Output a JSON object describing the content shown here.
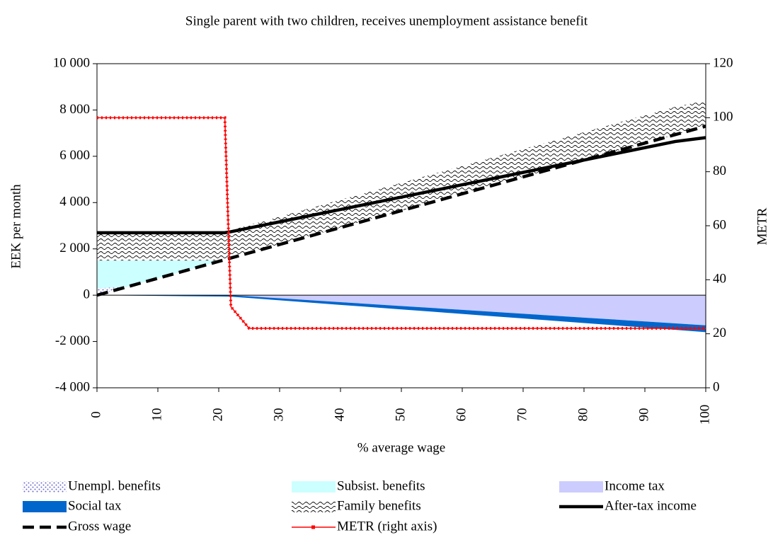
{
  "chart_data": {
    "type": "area",
    "title": "Single parent with two children, receives unemployment assistance benefit",
    "x_label": "% average wage",
    "y_label": "EEK per month",
    "y2_label": "METR",
    "stacked": true,
    "x": [
      0,
      5,
      10,
      15,
      20,
      21,
      22,
      25,
      30,
      35,
      40,
      45,
      50,
      55,
      60,
      65,
      70,
      75,
      80,
      85,
      90,
      95,
      100
    ],
    "xlim": [
      0,
      100
    ],
    "xticks": [
      0,
      10,
      20,
      30,
      40,
      50,
      60,
      70,
      80,
      90,
      100
    ],
    "ylim": [
      -4000,
      10000
    ],
    "yticks": [
      {
        "value": -4000,
        "label": "-4 000"
      },
      {
        "value": -2000,
        "label": "-2 000"
      },
      0,
      {
        "value": 2000,
        "label": "2 000"
      },
      {
        "value": 4000,
        "label": "4 000"
      },
      {
        "value": 6000,
        "label": "6 000"
      },
      {
        "value": 8000,
        "label": "8 000"
      },
      {
        "value": 10000,
        "label": "10 000"
      }
    ],
    "y2lim": [
      0,
      120
    ],
    "y2ticks": [
      0,
      20,
      40,
      60,
      80,
      100,
      120
    ],
    "series": [
      {
        "name": "Unempl. benefits",
        "type": "area",
        "pattern": "dots",
        "color": "#6a6ad0",
        "values": [
          300,
          0,
          0,
          0,
          0,
          0,
          0,
          0,
          0,
          0,
          0,
          0,
          0,
          0,
          0,
          0,
          0,
          0,
          0,
          0,
          0,
          0,
          0
        ]
      },
      {
        "name": "Subsist. benefits",
        "type": "area",
        "color": "#ccffff",
        "values": [
          1200,
          1135,
          770,
          405,
          40,
          0,
          0,
          0,
          0,
          0,
          0,
          0,
          0,
          0,
          0,
          0,
          0,
          0,
          0,
          0,
          0,
          0,
          0
        ]
      },
      {
        "name": "Income tax",
        "type": "area",
        "color": "#ccccff",
        "values": [
          0,
          0,
          0,
          0,
          0,
          0,
          0,
          -50,
          -134,
          -217,
          -301,
          -384,
          -468,
          -551,
          -635,
          -718,
          -802,
          -885,
          -969,
          -1052,
          -1136,
          -1219,
          -1303
        ]
      },
      {
        "name": "Social tax",
        "type": "area",
        "color": "#0066cc",
        "values": [
          0,
          -15,
          -29,
          -44,
          -58,
          -61,
          -64,
          -73,
          -88,
          -102,
          -117,
          -131,
          -146,
          -161,
          -175,
          -190,
          -204,
          -219,
          -234,
          -248,
          -263,
          -277,
          -292
        ]
      },
      {
        "name": "Family benefits",
        "type": "area",
        "pattern": "waves",
        "color": "#000000",
        "values": [
          1200,
          1200,
          1200,
          1200,
          1200,
          1200,
          1200,
          1200,
          1200,
          1200,
          1200,
          1200,
          1200,
          1200,
          1200,
          1200,
          1200,
          1200,
          1200,
          1200,
          1200,
          1200,
          1100
        ]
      },
      {
        "name": "After-tax income",
        "type": "line",
        "color": "#000000",
        "values": [
          2700,
          2700,
          2700,
          2700,
          2700,
          2700,
          2742,
          2902,
          3168,
          3436,
          3702,
          3970,
          4236,
          4503,
          4770,
          5037,
          5304,
          5571,
          5837,
          6105,
          6371,
          6639,
          6805
        ]
      },
      {
        "name": "Gross wage",
        "type": "line",
        "dash": true,
        "color": "#000000",
        "values": [
          0,
          365,
          730,
          1095,
          1460,
          1533,
          1606,
          1825,
          2190,
          2555,
          2920,
          3285,
          3650,
          4015,
          4380,
          4745,
          5110,
          5475,
          5840,
          6205,
          6570,
          6935,
          7300
        ]
      },
      {
        "name": "METR (right axis)",
        "type": "line",
        "axis": "y2",
        "color": "#ff0000",
        "values": [
          100,
          100,
          100,
          100,
          100,
          100,
          30,
          22,
          22,
          22,
          22,
          22,
          22,
          22,
          22,
          22,
          22,
          22,
          22,
          22,
          22,
          22,
          22
        ]
      }
    ]
  }
}
